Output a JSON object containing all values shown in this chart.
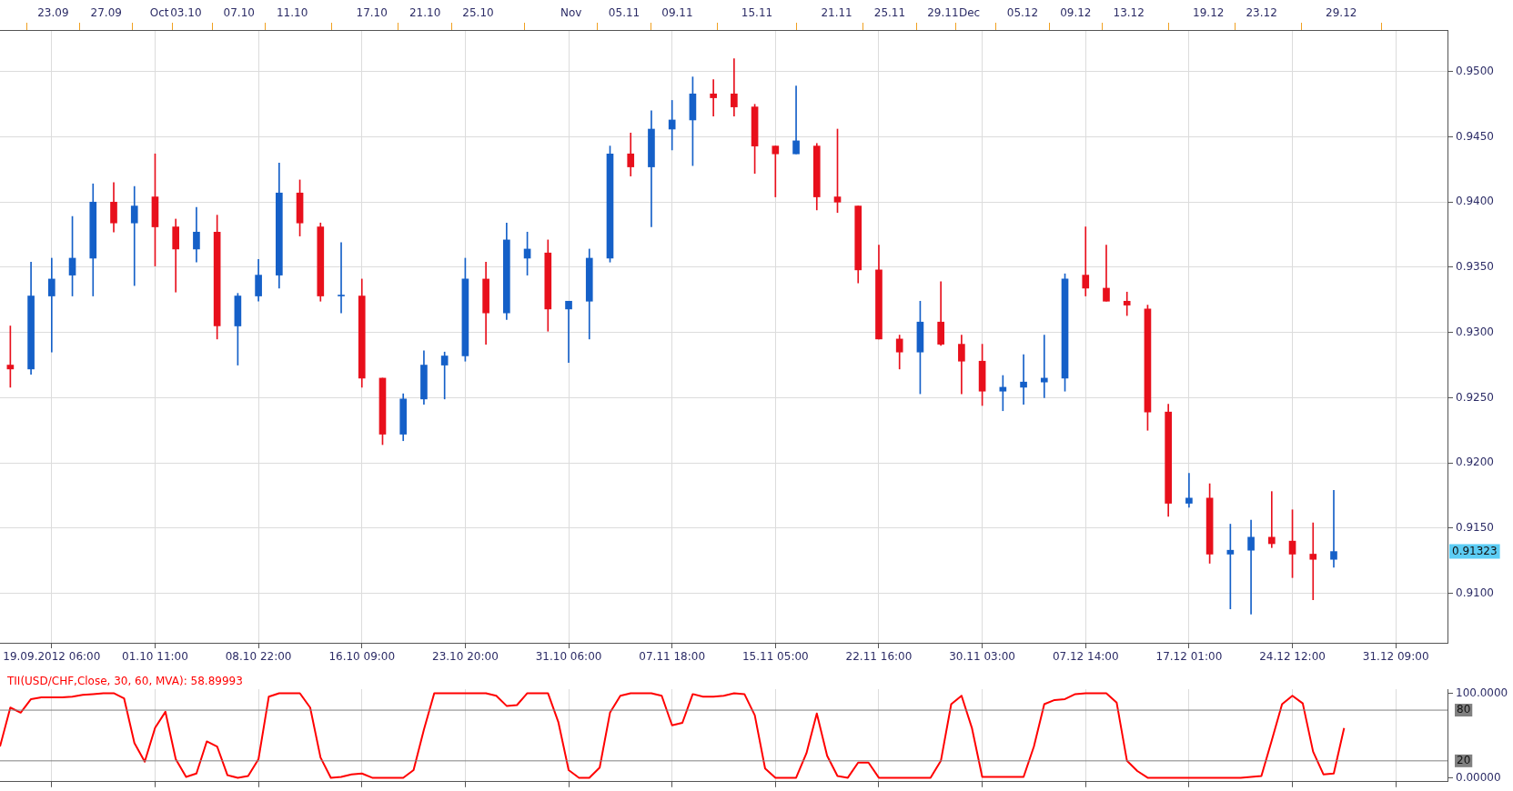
{
  "chart_data": [
    {
      "type": "candlestick",
      "categories": [
        null,
        null,
        null,
        null,
        null,
        "19.09.2012 06:00",
        null,
        null,
        null,
        null,
        null,
        null,
        null,
        null,
        null,
        "01.10 11:00",
        null,
        null,
        null,
        null,
        null,
        null,
        null,
        null,
        null,
        "08.10 22:00",
        null,
        null,
        null,
        null,
        null,
        null,
        null,
        null,
        null,
        "16.10 09:00",
        null,
        null,
        null,
        null,
        null,
        null,
        null,
        null,
        null,
        "23.10 20:00",
        null,
        null,
        null,
        null,
        null,
        null,
        null,
        null,
        null,
        "31.10 06:00",
        null,
        null,
        null,
        null,
        null,
        null,
        null,
        null,
        null,
        "07.11 18:00",
        null,
        null,
        null,
        null,
        null,
        null,
        null,
        null,
        null,
        "15.11 05:00",
        null,
        null,
        null,
        null,
        null,
        null,
        null,
        null,
        null,
        "22.11 16:00",
        null,
        null,
        null,
        null,
        null,
        null,
        null,
        null,
        null,
        "30.11 03:00",
        null,
        null,
        null,
        null,
        null,
        null,
        null,
        null,
        null,
        "07.12 14:00",
        null,
        null,
        null,
        null,
        null,
        null,
        null,
        null,
        null,
        "17.12 01:00",
        null,
        null,
        null,
        null,
        null,
        null,
        null,
        null,
        null,
        "24.12 12:00",
        null,
        null,
        null,
        null,
        null,
        null,
        null,
        null,
        null,
        "31.12 09:00",
        null,
        null,
        null,
        null,
        null
      ],
      "ohlc": [
        null,
        [
          0.9275,
          0.9305,
          0.9258,
          0.9272
        ],
        null,
        [
          0.9272,
          0.9354,
          0.9268,
          0.9328
        ],
        null,
        [
          0.9328,
          0.9357,
          0.9285,
          0.9341
        ],
        null,
        [
          0.9344,
          0.9389,
          0.9328,
          0.9357
        ],
        null,
        [
          0.9357,
          0.9414,
          0.9328,
          0.94
        ],
        null,
        [
          0.94,
          0.9415,
          0.9377,
          0.9384
        ],
        null,
        [
          0.9384,
          0.9412,
          0.9336,
          0.9397
        ],
        null,
        [
          0.9404,
          0.9437,
          0.9351,
          0.9381
        ],
        null,
        [
          0.9381,
          0.9387,
          0.9331,
          0.9364
        ],
        null,
        [
          0.9364,
          0.9396,
          0.9354,
          0.9377
        ],
        null,
        [
          0.9377,
          0.939,
          0.9295,
          0.9305
        ],
        null,
        [
          0.9305,
          0.933,
          0.9275,
          0.9328
        ],
        null,
        [
          0.9328,
          0.9356,
          0.9324,
          0.9344
        ],
        null,
        [
          0.9344,
          0.943,
          0.9334,
          0.9407
        ],
        null,
        [
          0.9407,
          0.9417,
          0.9374,
          0.9384
        ],
        null,
        [
          0.9381,
          0.9384,
          0.9324,
          0.9328
        ],
        null,
        [
          0.9328,
          0.9369,
          0.9315,
          0.9328
        ],
        null,
        [
          0.9328,
          0.9341,
          0.9258,
          0.9265
        ],
        null,
        [
          0.9265,
          0.9265,
          0.9214,
          0.9222
        ],
        null,
        [
          0.9222,
          0.9253,
          0.9217,
          0.9249
        ],
        null,
        [
          0.9249,
          0.9286,
          0.9245,
          0.9275
        ],
        null,
        [
          0.9275,
          0.9285,
          0.9249,
          0.9282
        ],
        null,
        [
          0.9282,
          0.9357,
          0.9278,
          0.9341
        ],
        null,
        [
          0.9341,
          0.9354,
          0.9291,
          0.9315
        ],
        null,
        [
          0.9315,
          0.9384,
          0.931,
          0.9371
        ],
        null,
        [
          0.9357,
          0.9377,
          0.9344,
          0.9364
        ],
        null,
        [
          0.9361,
          0.9371,
          0.9301,
          0.9318
        ],
        null,
        [
          0.9318,
          0.9324,
          0.9277,
          0.9324
        ],
        null,
        [
          0.9324,
          0.9364,
          0.9295,
          0.9357
        ],
        null,
        [
          0.9357,
          0.9443,
          0.9354,
          0.9437
        ],
        null,
        [
          0.9437,
          0.9453,
          0.942,
          0.9427
        ],
        null,
        [
          0.9427,
          0.947,
          0.9381,
          0.9456
        ],
        null,
        [
          0.9456,
          0.9478,
          0.944,
          0.9463
        ],
        null,
        [
          0.9463,
          0.9496,
          0.9428,
          0.9483
        ],
        null,
        [
          0.9483,
          0.9494,
          0.9466,
          0.948
        ],
        null,
        [
          0.9483,
          0.951,
          0.9466,
          0.9473
        ],
        null,
        [
          0.9473,
          0.9475,
          0.9422,
          0.9443
        ],
        null,
        [
          0.9443,
          0.9443,
          0.9404,
          0.9437
        ],
        null,
        [
          0.9437,
          0.9489,
          0.9437,
          0.9447
        ],
        null,
        [
          0.9443,
          0.9445,
          0.9394,
          0.9404
        ],
        null,
        [
          0.9404,
          0.9456,
          0.9392,
          0.94
        ],
        null,
        [
          0.9397,
          0.9397,
          0.9338,
          0.9348
        ],
        null,
        [
          0.9348,
          0.9367,
          0.9295,
          0.9295
        ],
        null,
        [
          0.9295,
          0.9298,
          0.9272,
          0.9285
        ],
        null,
        [
          0.9285,
          0.9324,
          0.9253,
          0.9308
        ],
        null,
        [
          0.9308,
          0.9339,
          0.929,
          0.9291
        ],
        null,
        [
          0.9291,
          0.9298,
          0.9253,
          0.9278
        ],
        null,
        [
          0.9278,
          0.9291,
          0.9244,
          0.9255
        ],
        null,
        [
          0.9255,
          0.9267,
          0.924,
          0.9258
        ],
        null,
        [
          0.9258,
          0.9283,
          0.9245,
          0.9262
        ],
        null,
        [
          0.9262,
          0.9298,
          0.925,
          0.9265
        ],
        null,
        [
          0.9265,
          0.9345,
          0.9255,
          0.9341
        ],
        null,
        [
          0.9344,
          0.9381,
          0.9328,
          0.9334
        ],
        null,
        [
          0.9334,
          0.9367,
          0.9324,
          0.9324
        ],
        null,
        [
          0.9324,
          0.9331,
          0.9313,
          0.9321
        ],
        null,
        [
          0.9318,
          0.9321,
          0.9225,
          0.9239
        ],
        null,
        [
          0.9239,
          0.9245,
          0.9159,
          0.9169
        ],
        null,
        [
          0.9169,
          0.9192,
          0.9166,
          0.9173
        ],
        null,
        [
          0.9173,
          0.9184,
          0.9123,
          0.913
        ],
        null,
        [
          0.913,
          0.9153,
          0.9088,
          0.9133
        ],
        null,
        [
          0.9133,
          0.9156,
          0.9084,
          0.9143
        ],
        null,
        [
          0.9143,
          0.9178,
          0.9135,
          0.9138
        ],
        null,
        [
          0.914,
          0.9164,
          0.9112,
          0.913
        ],
        null,
        [
          0.913,
          0.9154,
          0.9095,
          0.9126
        ],
        null,
        [
          0.9126,
          0.9179,
          0.912,
          0.9132
        ],
        null,
        null,
        null,
        null,
        null,
        null,
        null,
        null,
        null,
        null,
        null
      ],
      "colors": [
        null,
        "#e8101c",
        null,
        "#1560c8",
        null,
        "#1560c8",
        null,
        "#1560c8",
        null,
        "#1560c8",
        null,
        "#e8101c",
        null,
        "#1560c8",
        null,
        "#e8101c",
        null,
        "#e8101c",
        null,
        "#1560c8",
        null,
        "#e8101c",
        null,
        "#1560c8",
        null,
        "#1560c8",
        null,
        "#1560c8",
        null,
        "#e8101c",
        null,
        "#e8101c",
        null,
        "#1560c8",
        null,
        "#e8101c",
        null,
        "#e8101c",
        null,
        "#1560c8",
        null,
        "#1560c8",
        null,
        "#1560c8",
        null,
        "#1560c8",
        null,
        "#e8101c",
        null,
        "#1560c8",
        null,
        "#1560c8",
        null,
        "#e8101c",
        null,
        "#1560c8",
        null,
        "#1560c8",
        null,
        "#1560c8",
        null,
        "#e8101c",
        null,
        "#1560c8",
        null,
        "#1560c8",
        null,
        "#1560c8",
        null,
        "#e8101c",
        null,
        "#e8101c",
        null,
        "#e8101c",
        null,
        "#e8101c",
        null,
        "#1560c8",
        null,
        "#e8101c",
        null,
        "#e8101c",
        null,
        "#e8101c",
        null,
        "#e8101c",
        null,
        "#e8101c",
        null,
        "#1560c8",
        null,
        "#e8101c",
        null,
        "#e8101c",
        null,
        "#e8101c",
        null,
        "#1560c8",
        null,
        "#1560c8",
        null,
        "#1560c8",
        null,
        "#1560c8",
        null,
        "#e8101c",
        null,
        "#e8101c",
        null,
        "#e8101c",
        null,
        "#e8101c",
        null,
        "#e8101c",
        null,
        "#1560c8",
        null,
        "#e8101c",
        null,
        "#1560c8",
        null,
        "#1560c8",
        null,
        "#e8101c",
        null,
        "#e8101c",
        null,
        "#e8101c",
        null,
        "#1560c8",
        null,
        null,
        null,
        null,
        null,
        null,
        null,
        null,
        null,
        null,
        null
      ],
      "x2lim": [
        "2012-09-19",
        "2013-01-06"
      ],
      "x2ticks": [
        {
          "value": "2012-09-23",
          "label": "23.09"
        },
        {
          "value": "2012-09-27",
          "label": "27.09"
        },
        {
          "value": "2012-10-01",
          "label": "Oct"
        },
        {
          "value": "2012-10-03",
          "label": "03.10"
        },
        {
          "value": "2012-10-07",
          "label": "07.10"
        },
        {
          "value": "2012-10-11",
          "label": "11.10"
        },
        {
          "value": "2012-10-17",
          "label": "17.10"
        },
        {
          "value": "2012-10-21",
          "label": "21.10"
        },
        {
          "value": "2012-10-25",
          "label": "25.10"
        },
        {
          "value": "2012-11-01",
          "label": "Nov"
        },
        {
          "value": "2012-11-05",
          "label": "05.11"
        },
        {
          "value": "2012-11-09",
          "label": "09.11"
        },
        {
          "value": "2012-11-15",
          "label": "15.11"
        },
        {
          "value": "2012-11-21",
          "label": "21.11"
        },
        {
          "value": "2012-11-25",
          "label": "25.11"
        },
        {
          "value": "2012-11-29",
          "label": "29.11"
        },
        {
          "value": "2012-12-01",
          "label": "Dec"
        },
        {
          "value": "2012-12-05",
          "label": "05.12"
        },
        {
          "value": "2012-12-09",
          "label": "09.12"
        },
        {
          "value": "2012-12-13",
          "label": "13.12"
        },
        {
          "value": "2012-12-19",
          "label": "19.12"
        },
        {
          "value": "2012-12-23",
          "label": "23.12"
        },
        {
          "value": "2012-12-29",
          "label": "29.12"
        }
      ],
      "ylim": [
        0.9062,
        0.9532
      ],
      "yticks": [
        {
          "value": 0.91,
          "label": "0.9100"
        },
        {
          "value": 0.915,
          "label": "0.9150"
        },
        {
          "value": 0.92,
          "label": "0.9200"
        },
        {
          "value": 0.925,
          "label": "0.9250"
        },
        {
          "value": 0.93,
          "label": "0.9300"
        },
        {
          "value": 0.935,
          "label": "0.9350"
        },
        {
          "value": 0.94,
          "label": "0.9400"
        },
        {
          "value": 0.945,
          "label": "0.9450"
        },
        {
          "value": 0.95,
          "label": "0.9500"
        }
      ],
      "annotations": [
        "0.91323"
      ],
      "grid": true
    },
    {
      "type": "line",
      "title": "TII(USD/CHF,Close, 30, 60, MVA): 58.89993",
      "categories": [
        null,
        null,
        null,
        null,
        null,
        null,
        null,
        null,
        null,
        null,
        null,
        null,
        null,
        null,
        null,
        null,
        null,
        null,
        null,
        null,
        null,
        null,
        null,
        null,
        null,
        null,
        null,
        null,
        null,
        null,
        null,
        null,
        null,
        null,
        null,
        null,
        null,
        null,
        null,
        null,
        null,
        null,
        null,
        null,
        null,
        null,
        null,
        null,
        null,
        null,
        null,
        null,
        null,
        null,
        null,
        null,
        null,
        null,
        null,
        null,
        null,
        null,
        null,
        null,
        null,
        null,
        null,
        null,
        null,
        null,
        null,
        null,
        null,
        null,
        null,
        null,
        null,
        null,
        null,
        null,
        null,
        null,
        null,
        null,
        null,
        null,
        null,
        null,
        null,
        null,
        null,
        null,
        null,
        null,
        null,
        null,
        null,
        null,
        null,
        null,
        null,
        null,
        null,
        null,
        null,
        null,
        null,
        null,
        null,
        null,
        null,
        null,
        null,
        null,
        null,
        null,
        null,
        null,
        null,
        null,
        null,
        null,
        null,
        null,
        null,
        null,
        null,
        null,
        null,
        null,
        null,
        null,
        null,
        null,
        null,
        null,
        null,
        null,
        null,
        null,
        null
      ],
      "series": [
        {
          "color": "#ff0000",
          "values": [
            37,
            83,
            77,
            93,
            95,
            95,
            95,
            96,
            98,
            99,
            100,
            100,
            94,
            41,
            19,
            59,
            78,
            22,
            1,
            5,
            43,
            37,
            3,
            0,
            2,
            22,
            96,
            100,
            100,
            100,
            83,
            24,
            0,
            1,
            4,
            5,
            0,
            0,
            0,
            0,
            9,
            57,
            100,
            100,
            100,
            100,
            100,
            100,
            97,
            85,
            86,
            100,
            100,
            100,
            66,
            9,
            0,
            0,
            12,
            77,
            97,
            100,
            100,
            100,
            97,
            62,
            65,
            99,
            96,
            96,
            97,
            100,
            99,
            74,
            11,
            0,
            0,
            0,
            29,
            76,
            26,
            2,
            0,
            18,
            18,
            0,
            0,
            0,
            0,
            0,
            0,
            20,
            87,
            97,
            59,
            1,
            1,
            1,
            1,
            1,
            37,
            87,
            92,
            93,
            99,
            100,
            100,
            100,
            89,
            20,
            8,
            0,
            0,
            0,
            0,
            0,
            0,
            0,
            0,
            0,
            0,
            1,
            2,
            44,
            87,
            97,
            88,
            31,
            4,
            5,
            58.89993,
            null,
            null,
            null,
            null,
            null,
            null,
            null,
            null,
            null,
            null
          ]
        }
      ],
      "ylim": [
        -4.7,
        104.8
      ],
      "yticks": [
        {
          "value": 100,
          "label": "100.0000"
        },
        {
          "value": 0,
          "label": "0.00000"
        }
      ],
      "ref_lines": [
        {
          "axis": "y",
          "value": 80,
          "label": "80",
          "color": "#808080"
        },
        {
          "axis": "y",
          "value": 20,
          "label": "20",
          "color": "#808080"
        }
      ],
      "tick_labels": "y",
      "grid": "x"
    }
  ]
}
